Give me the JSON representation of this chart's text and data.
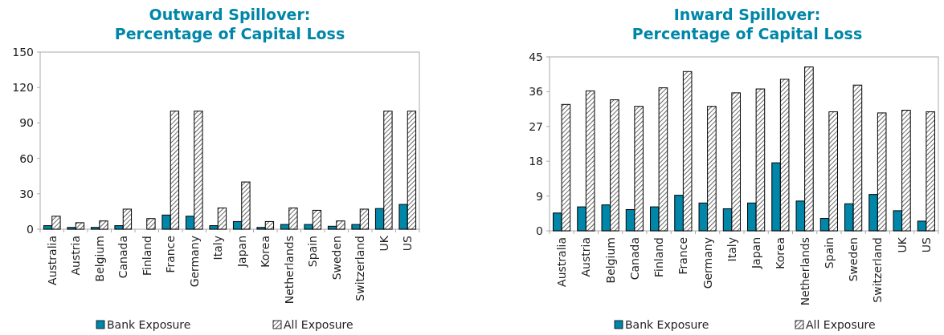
{
  "chart_data": [
    {
      "type": "bar",
      "title": "Outward Spillover:\nPercentage of Capital Loss",
      "categories": [
        "Australia",
        "Austria",
        "Belgium",
        "Canada",
        "Finland",
        "France",
        "Germany",
        "Italy",
        "Japan",
        "Korea",
        "Netherlands",
        "Spain",
        "Sweden",
        "Switzerland",
        "UK",
        "US"
      ],
      "series": [
        {
          "name": "Bank Exposure",
          "color": "#0086a8",
          "values": [
            3,
            1.5,
            1.5,
            3,
            0,
            12,
            11,
            3,
            6.5,
            1.5,
            4,
            4,
            2.5,
            4,
            17.5,
            21
          ]
        },
        {
          "name": "All Exposure",
          "color": "#000000",
          "values": [
            11,
            5.5,
            7,
            17,
            9,
            100,
            100,
            18,
            40,
            6.5,
            18,
            16,
            7,
            17,
            100,
            100
          ]
        }
      ],
      "ylim": [
        0,
        150
      ],
      "yticks": [
        0,
        30,
        60,
        90,
        120,
        150
      ],
      "grid": false,
      "legend": "bottom"
    },
    {
      "type": "bar",
      "title": "Inward Spillover:\nPercentage of Capital Loss",
      "categories": [
        "Australia",
        "Austria",
        "Belgium",
        "Canada",
        "Finland",
        "France",
        "Germany",
        "Italy",
        "Japan",
        "Korea",
        "Netherlands",
        "Spain",
        "Sweden",
        "Switzerland",
        "UK",
        "US"
      ],
      "series": [
        {
          "name": "Bank Exposure",
          "color": "#0086a8",
          "values": [
            4.6,
            6.2,
            6.7,
            5.5,
            6.2,
            9.2,
            7.2,
            5.7,
            7.2,
            17.6,
            7.7,
            3.2,
            7.0,
            9.4,
            5.2,
            2.5
          ]
        },
        {
          "name": "All Exposure",
          "color": "#000000",
          "values": [
            32.7,
            36.2,
            33.9,
            32.2,
            37.0,
            41.2,
            32.2,
            35.7,
            36.7,
            39.2,
            42.4,
            30.8,
            37.7,
            30.5,
            31.2,
            30.8
          ]
        }
      ],
      "ylim": [
        0,
        45
      ],
      "yticks": [
        0,
        9,
        18,
        27,
        36,
        45
      ],
      "grid": false,
      "legend": "bottom"
    }
  ]
}
